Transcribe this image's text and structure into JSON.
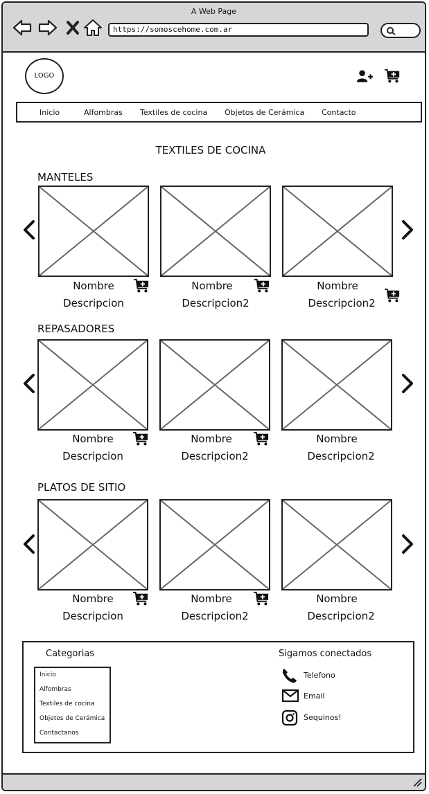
{
  "browser": {
    "title": "A Web Page",
    "url": "https://somoscehome.com.ar"
  },
  "header": {
    "logo": "LOGO"
  },
  "menu": [
    "Inicio",
    "Alfombras",
    "Textiles de cocina",
    "Objetos de Cerámica",
    "Contacto"
  ],
  "page_title": "TEXTILES DE COCINA",
  "sections": [
    {
      "title": "MANTELES",
      "products": [
        {
          "name": "Nombre",
          "description": "Descripcion"
        },
        {
          "name": "Nombre",
          "description": "Descripcion2"
        },
        {
          "name": "Nombre",
          "description": "Descripcion2"
        }
      ]
    },
    {
      "title": "REPASADORES",
      "products": [
        {
          "name": "Nombre",
          "description": "Descripcion"
        },
        {
          "name": "Nombre",
          "description": "Descripcion2"
        },
        {
          "name": "Nombre",
          "description": "Descripcion2"
        }
      ]
    },
    {
      "title": "PLATOS DE SITIO",
      "products": [
        {
          "name": "Nombre",
          "description": "Descripcion"
        },
        {
          "name": "Nombre",
          "description": "Descripcion2"
        },
        {
          "name": "Nombre",
          "description": "Descripcion2"
        }
      ]
    }
  ],
  "footer": {
    "categories_title": "Categorias",
    "categories": [
      "Inicio",
      "Alfombras",
      "Textiles de cocina",
      "Objetos de Cerámica",
      "Contactanos"
    ],
    "social_title": "Sigamos conectados",
    "social": [
      {
        "icon": "phone-icon",
        "label": "Telefono"
      },
      {
        "icon": "email-icon",
        "label": "Email"
      },
      {
        "icon": "instagram-icon",
        "label": "Sequinos!"
      }
    ]
  },
  "colors": {
    "chrome": "#d6d6d6",
    "stroke": "#222222",
    "placeholder": "#666666"
  }
}
